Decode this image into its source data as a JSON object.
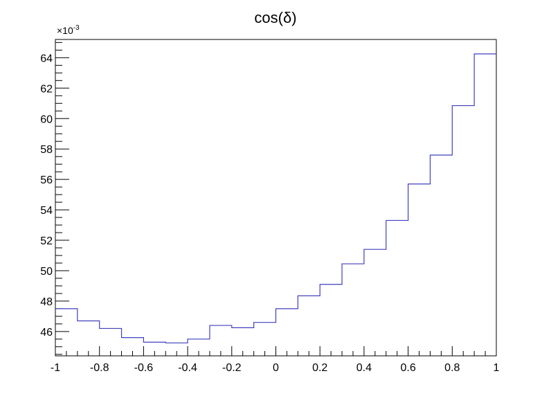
{
  "chart_data": {
    "type": "line",
    "title": "cos(δ)",
    "xlabel": "",
    "ylabel": "",
    "y_multiplier_base": "×10",
    "y_multiplier_exp": "-3",
    "xlim": [
      -1,
      1
    ],
    "ylim": [
      44.4,
      65.2
    ],
    "grid": false,
    "legend": "none",
    "line_color": "#3f3fbf",
    "x_ticks": [
      -1,
      -0.8,
      -0.6,
      -0.4,
      -0.2,
      0,
      0.2,
      0.4,
      0.6,
      0.8,
      1
    ],
    "x_tick_labels": [
      "-1",
      "-0.8",
      "-0.6",
      "-0.4",
      "-0.2",
      "0",
      "0.2",
      "0.4",
      "0.6",
      "0.8",
      "1"
    ],
    "y_ticks": [
      46,
      48,
      50,
      52,
      54,
      56,
      58,
      60,
      62,
      64
    ],
    "y_tick_labels": [
      "46",
      "48",
      "50",
      "52",
      "54",
      "56",
      "58",
      "60",
      "62",
      "64"
    ],
    "bin_edges": [
      -1,
      -0.9,
      -0.8,
      -0.7,
      -0.6,
      -0.5,
      -0.4,
      -0.3,
      -0.2,
      -0.1,
      0,
      0.1,
      0.2,
      0.3,
      0.4,
      0.5,
      0.6,
      0.7,
      0.8,
      0.9,
      1
    ],
    "values": [
      47.5,
      46.7,
      46.2,
      45.6,
      45.3,
      45.25,
      45.5,
      46.4,
      46.25,
      46.6,
      47.5,
      48.35,
      49.1,
      50.45,
      51.4,
      53.3,
      55.7,
      57.6,
      60.85,
      64.25
    ]
  }
}
